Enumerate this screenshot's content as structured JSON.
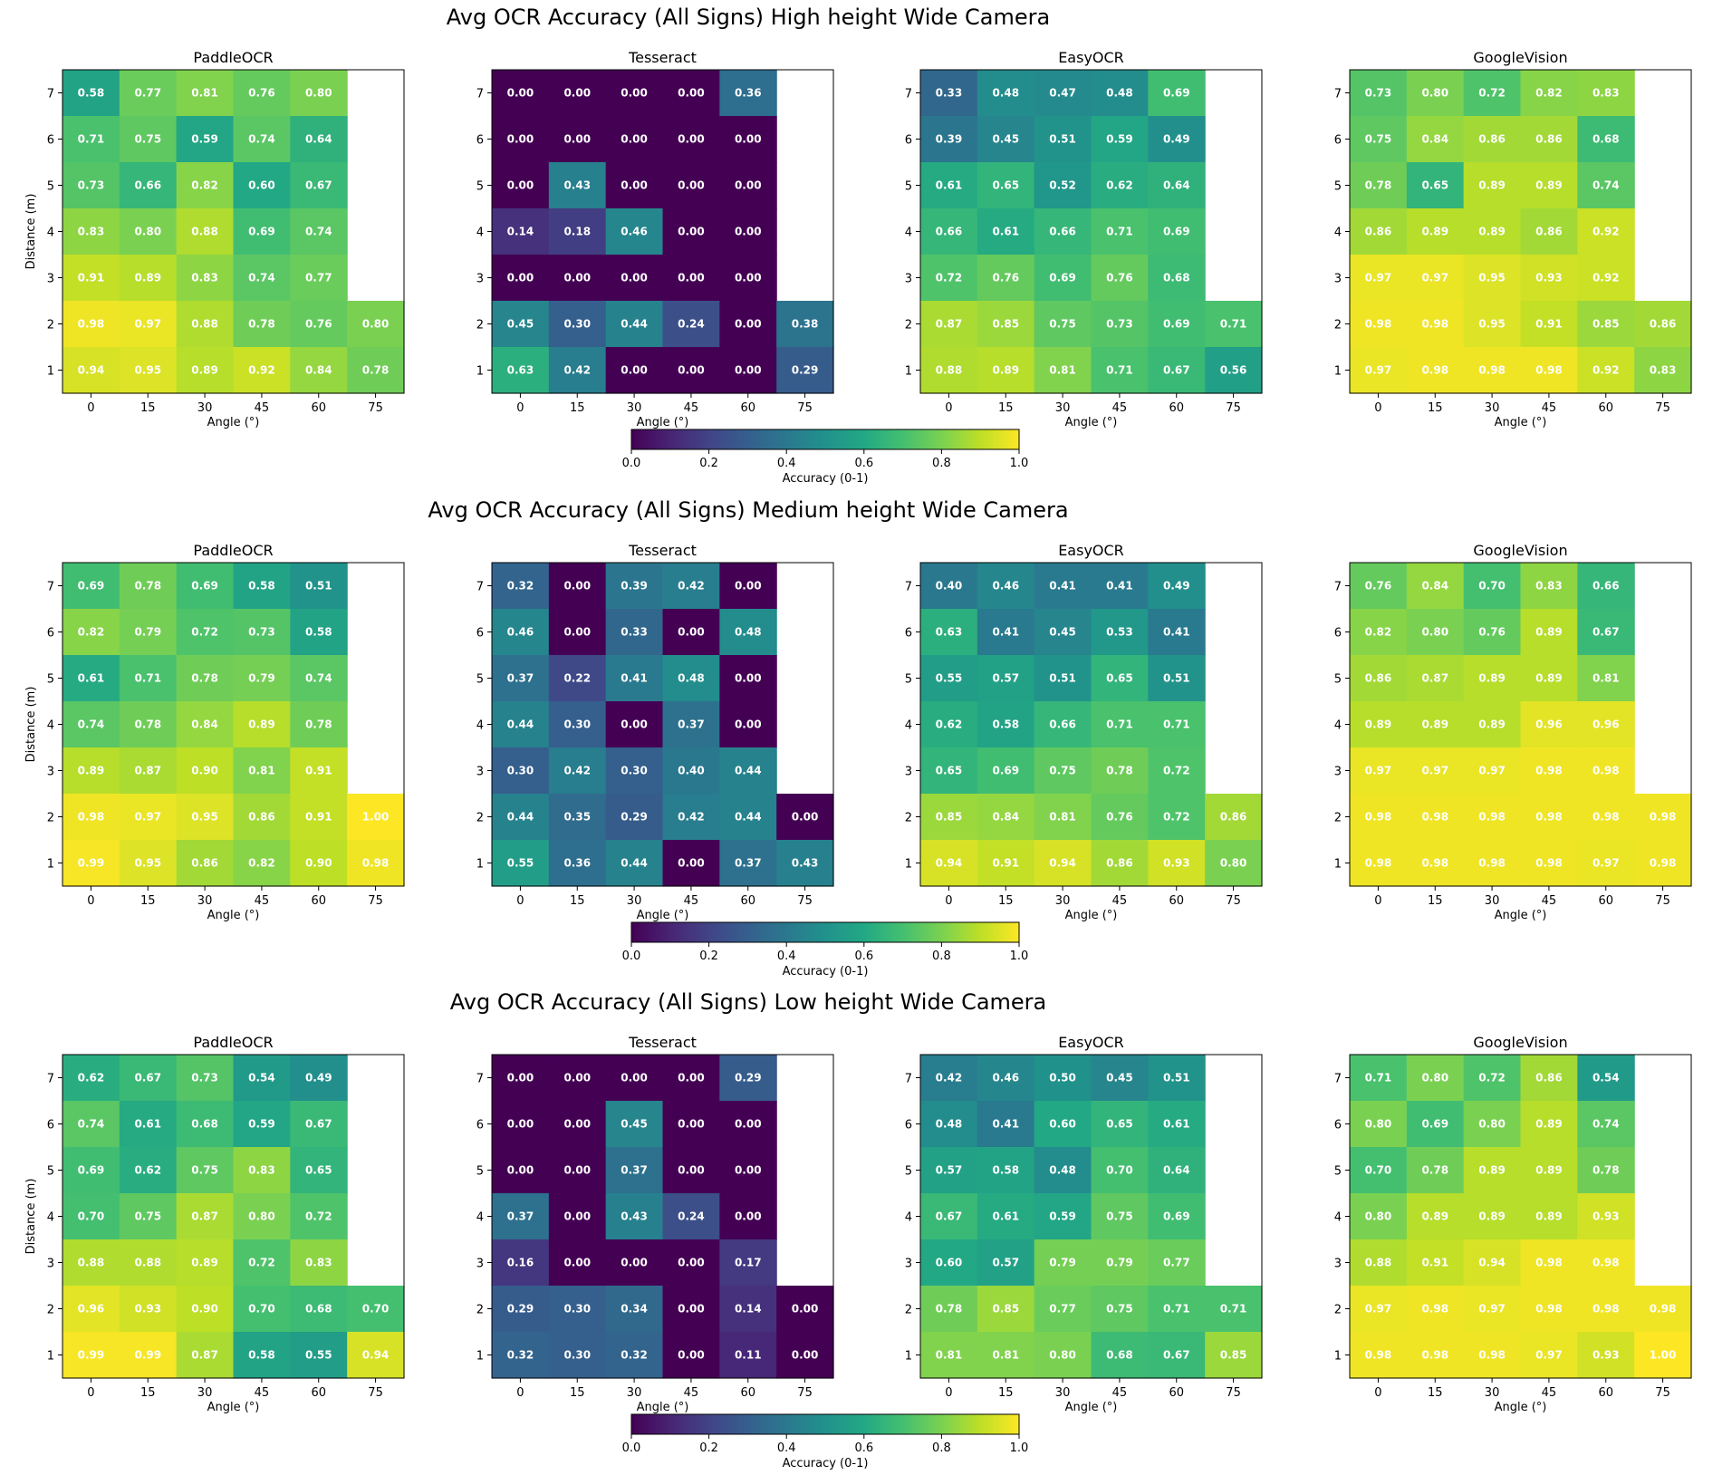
{
  "chart_data": {
    "type": "heatmap",
    "colormap": "viridis",
    "value_range": [
      0,
      1
    ],
    "x_ticks": [
      "0",
      "15",
      "30",
      "45",
      "60",
      "75"
    ],
    "y_ticks": [
      "7",
      "6",
      "5",
      "4",
      "3",
      "2",
      "1"
    ],
    "xlabel": "Angle (°)",
    "ylabel": "Distance (m)",
    "colorbar": {
      "label": "Accuracy (0-1)",
      "ticks": [
        "0.0",
        "0.2",
        "0.4",
        "0.6",
        "0.8",
        "1.0"
      ]
    },
    "rows": [
      {
        "title": "Avg OCR Accuracy (All Signs)  High height  Wide Camera",
        "panels": [
          {
            "title": "PaddleOCR",
            "values": [
              [
                0.58,
                0.77,
                0.81,
                0.76,
                0.8,
                null
              ],
              [
                0.71,
                0.75,
                0.59,
                0.74,
                0.64,
                null
              ],
              [
                0.73,
                0.66,
                0.82,
                0.6,
                0.67,
                null
              ],
              [
                0.83,
                0.8,
                0.88,
                0.69,
                0.74,
                null
              ],
              [
                0.91,
                0.89,
                0.83,
                0.74,
                0.77,
                null
              ],
              [
                0.98,
                0.97,
                0.88,
                0.78,
                0.76,
                0.8
              ],
              [
                0.94,
                0.95,
                0.89,
                0.92,
                0.84,
                0.78
              ]
            ]
          },
          {
            "title": "Tesseract",
            "values": [
              [
                0.0,
                0.0,
                0.0,
                0.0,
                0.36,
                null
              ],
              [
                0.0,
                0.0,
                0.0,
                0.0,
                0.0,
                null
              ],
              [
                0.0,
                0.43,
                0.0,
                0.0,
                0.0,
                null
              ],
              [
                0.14,
                0.18,
                0.46,
                0.0,
                0.0,
                null
              ],
              [
                0.0,
                0.0,
                0.0,
                0.0,
                0.0,
                null
              ],
              [
                0.45,
                0.3,
                0.44,
                0.24,
                0.0,
                0.38
              ],
              [
                0.63,
                0.42,
                0.0,
                0.0,
                0.0,
                0.29
              ]
            ]
          },
          {
            "title": "EasyOCR",
            "values": [
              [
                0.33,
                0.48,
                0.47,
                0.48,
                0.69,
                null
              ],
              [
                0.39,
                0.45,
                0.51,
                0.59,
                0.49,
                null
              ],
              [
                0.61,
                0.65,
                0.52,
                0.62,
                0.64,
                null
              ],
              [
                0.66,
                0.61,
                0.66,
                0.71,
                0.69,
                null
              ],
              [
                0.72,
                0.76,
                0.69,
                0.76,
                0.68,
                null
              ],
              [
                0.87,
                0.85,
                0.75,
                0.73,
                0.69,
                0.71
              ],
              [
                0.88,
                0.89,
                0.81,
                0.71,
                0.67,
                0.56
              ]
            ]
          },
          {
            "title": "GoogleVision",
            "values": [
              [
                0.73,
                0.8,
                0.72,
                0.82,
                0.83,
                null
              ],
              [
                0.75,
                0.84,
                0.86,
                0.86,
                0.68,
                null
              ],
              [
                0.78,
                0.65,
                0.89,
                0.89,
                0.74,
                null
              ],
              [
                0.86,
                0.89,
                0.89,
                0.86,
                0.92,
                null
              ],
              [
                0.97,
                0.97,
                0.95,
                0.93,
                0.92,
                null
              ],
              [
                0.98,
                0.98,
                0.95,
                0.91,
                0.85,
                0.86
              ],
              [
                0.97,
                0.98,
                0.98,
                0.98,
                0.92,
                0.83
              ]
            ]
          }
        ]
      },
      {
        "title": "Avg OCR Accuracy (All Signs)  Medium height  Wide Camera",
        "panels": [
          {
            "title": "PaddleOCR",
            "values": [
              [
                0.69,
                0.78,
                0.69,
                0.58,
                0.51,
                null
              ],
              [
                0.82,
                0.79,
                0.72,
                0.73,
                0.58,
                null
              ],
              [
                0.61,
                0.71,
                0.78,
                0.79,
                0.74,
                null
              ],
              [
                0.74,
                0.78,
                0.84,
                0.89,
                0.78,
                null
              ],
              [
                0.89,
                0.87,
                0.9,
                0.81,
                0.91,
                null
              ],
              [
                0.98,
                0.97,
                0.95,
                0.86,
                0.91,
                1.0
              ],
              [
                0.99,
                0.95,
                0.86,
                0.82,
                0.9,
                0.98
              ]
            ]
          },
          {
            "title": "Tesseract",
            "values": [
              [
                0.32,
                0.0,
                0.39,
                0.42,
                0.0,
                null
              ],
              [
                0.46,
                0.0,
                0.33,
                0.0,
                0.48,
                null
              ],
              [
                0.37,
                0.22,
                0.41,
                0.48,
                0.0,
                null
              ],
              [
                0.44,
                0.3,
                0.0,
                0.37,
                0.0,
                null
              ],
              [
                0.3,
                0.42,
                0.3,
                0.4,
                0.44,
                null
              ],
              [
                0.44,
                0.35,
                0.29,
                0.42,
                0.44,
                0.0
              ],
              [
                0.55,
                0.36,
                0.44,
                0.0,
                0.37,
                0.43
              ]
            ]
          },
          {
            "title": "EasyOCR",
            "values": [
              [
                0.4,
                0.46,
                0.41,
                0.41,
                0.49,
                null
              ],
              [
                0.63,
                0.41,
                0.45,
                0.53,
                0.41,
                null
              ],
              [
                0.55,
                0.57,
                0.51,
                0.65,
                0.51,
                null
              ],
              [
                0.62,
                0.58,
                0.66,
                0.71,
                0.71,
                null
              ],
              [
                0.65,
                0.69,
                0.75,
                0.78,
                0.72,
                null
              ],
              [
                0.85,
                0.84,
                0.81,
                0.76,
                0.72,
                0.86
              ],
              [
                0.94,
                0.91,
                0.94,
                0.86,
                0.93,
                0.8
              ]
            ]
          },
          {
            "title": "GoogleVision",
            "values": [
              [
                0.76,
                0.84,
                0.7,
                0.83,
                0.66,
                null
              ],
              [
                0.82,
                0.8,
                0.76,
                0.89,
                0.67,
                null
              ],
              [
                0.86,
                0.87,
                0.89,
                0.89,
                0.81,
                null
              ],
              [
                0.89,
                0.89,
                0.89,
                0.96,
                0.96,
                null
              ],
              [
                0.97,
                0.97,
                0.97,
                0.98,
                0.98,
                null
              ],
              [
                0.98,
                0.98,
                0.98,
                0.98,
                0.98,
                0.98
              ],
              [
                0.98,
                0.98,
                0.98,
                0.98,
                0.97,
                0.98
              ]
            ]
          }
        ]
      },
      {
        "title": "Avg OCR Accuracy (All Signs)  Low height  Wide Camera",
        "panels": [
          {
            "title": "PaddleOCR",
            "values": [
              [
                0.62,
                0.67,
                0.73,
                0.54,
                0.49,
                null
              ],
              [
                0.74,
                0.61,
                0.68,
                0.59,
                0.67,
                null
              ],
              [
                0.69,
                0.62,
                0.75,
                0.83,
                0.65,
                null
              ],
              [
                0.7,
                0.75,
                0.87,
                0.8,
                0.72,
                null
              ],
              [
                0.88,
                0.88,
                0.89,
                0.72,
                0.83,
                null
              ],
              [
                0.96,
                0.93,
                0.9,
                0.7,
                0.68,
                0.7
              ],
              [
                0.99,
                0.99,
                0.87,
                0.58,
                0.55,
                0.94
              ]
            ]
          },
          {
            "title": "Tesseract",
            "values": [
              [
                0.0,
                0.0,
                0.0,
                0.0,
                0.29,
                null
              ],
              [
                0.0,
                0.0,
                0.45,
                0.0,
                0.0,
                null
              ],
              [
                0.0,
                0.0,
                0.37,
                0.0,
                0.0,
                null
              ],
              [
                0.37,
                0.0,
                0.43,
                0.24,
                0.0,
                null
              ],
              [
                0.16,
                0.0,
                0.0,
                0.0,
                0.17,
                null
              ],
              [
                0.29,
                0.3,
                0.34,
                0.0,
                0.14,
                0.0
              ],
              [
                0.32,
                0.3,
                0.32,
                0.0,
                0.11,
                0.0
              ]
            ]
          },
          {
            "title": "EasyOCR",
            "values": [
              [
                0.42,
                0.46,
                0.5,
                0.45,
                0.51,
                null
              ],
              [
                0.48,
                0.41,
                0.6,
                0.65,
                0.61,
                null
              ],
              [
                0.57,
                0.58,
                0.48,
                0.7,
                0.64,
                null
              ],
              [
                0.67,
                0.61,
                0.59,
                0.75,
                0.69,
                null
              ],
              [
                0.6,
                0.57,
                0.79,
                0.79,
                0.77,
                null
              ],
              [
                0.78,
                0.85,
                0.77,
                0.75,
                0.71,
                0.71
              ],
              [
                0.81,
                0.81,
                0.8,
                0.68,
                0.67,
                0.85
              ]
            ]
          },
          {
            "title": "GoogleVision",
            "values": [
              [
                0.71,
                0.8,
                0.72,
                0.86,
                0.54,
                null
              ],
              [
                0.8,
                0.69,
                0.8,
                0.89,
                0.74,
                null
              ],
              [
                0.7,
                0.78,
                0.89,
                0.89,
                0.78,
                null
              ],
              [
                0.8,
                0.89,
                0.89,
                0.89,
                0.93,
                null
              ],
              [
                0.88,
                0.91,
                0.94,
                0.98,
                0.98,
                null
              ],
              [
                0.97,
                0.98,
                0.97,
                0.98,
                0.98,
                0.98
              ],
              [
                0.98,
                0.98,
                0.98,
                0.97,
                0.93,
                1.0
              ]
            ]
          }
        ]
      }
    ]
  }
}
